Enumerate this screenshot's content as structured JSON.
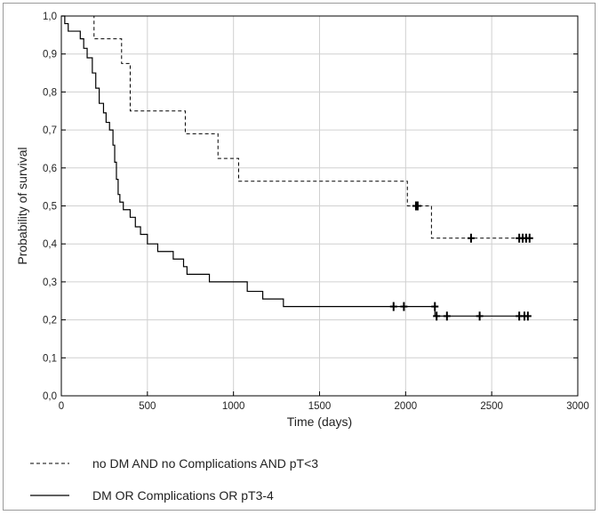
{
  "chart_data": {
    "type": "line",
    "xlabel": "Time (days)",
    "ylabel": "Probability of survival",
    "xlim": [
      0,
      3000
    ],
    "ylim": [
      0,
      1
    ],
    "x_ticks": [
      0,
      500,
      1000,
      1500,
      2000,
      2500,
      3000
    ],
    "x_tick_labels": [
      "0",
      "500",
      "1000",
      "1500",
      "2000",
      "2500",
      "3000"
    ],
    "y_ticks": [
      0,
      0.1,
      0.2,
      0.3,
      0.4,
      0.5,
      0.6,
      0.7,
      0.8,
      0.9,
      1.0
    ],
    "y_tick_labels": [
      "0,0",
      "0,1",
      "0,2",
      "0,3",
      "0,4",
      "0,5",
      "0,6",
      "0,7",
      "0,8",
      "0,9",
      "1,0"
    ],
    "grid": true,
    "legend_position": "bottom",
    "series": [
      {
        "name": "no DM AND  no Complications AND pT<3",
        "style": "dashed",
        "color": "#000000",
        "steps": [
          [
            0,
            1.0
          ],
          [
            190,
            0.94
          ],
          [
            350,
            0.875
          ],
          [
            400,
            0.75
          ],
          [
            720,
            0.69
          ],
          [
            910,
            0.625
          ],
          [
            1030,
            0.565
          ],
          [
            2010,
            0.5
          ],
          [
            2150,
            0.415
          ],
          [
            2720,
            0.415
          ]
        ],
        "censored": [
          [
            2060,
            0.5
          ],
          [
            2070,
            0.5
          ],
          [
            2380,
            0.415
          ],
          [
            2660,
            0.415
          ],
          [
            2680,
            0.415
          ],
          [
            2700,
            0.415
          ],
          [
            2720,
            0.415
          ]
        ]
      },
      {
        "name": "DM OR Complications OR pT3-4",
        "style": "solid",
        "color": "#000000",
        "steps": [
          [
            0,
            1.0
          ],
          [
            20,
            0.98
          ],
          [
            40,
            0.96
          ],
          [
            110,
            0.94
          ],
          [
            130,
            0.915
          ],
          [
            150,
            0.89
          ],
          [
            180,
            0.85
          ],
          [
            200,
            0.81
          ],
          [
            220,
            0.77
          ],
          [
            245,
            0.745
          ],
          [
            260,
            0.72
          ],
          [
            280,
            0.7
          ],
          [
            300,
            0.66
          ],
          [
            310,
            0.615
          ],
          [
            320,
            0.57
          ],
          [
            330,
            0.53
          ],
          [
            340,
            0.51
          ],
          [
            360,
            0.49
          ],
          [
            400,
            0.47
          ],
          [
            430,
            0.445
          ],
          [
            460,
            0.425
          ],
          [
            500,
            0.4
          ],
          [
            560,
            0.38
          ],
          [
            650,
            0.36
          ],
          [
            710,
            0.34
          ],
          [
            730,
            0.32
          ],
          [
            860,
            0.3
          ],
          [
            1080,
            0.275
          ],
          [
            1170,
            0.255
          ],
          [
            1290,
            0.235
          ],
          [
            2170,
            0.21
          ],
          [
            2710,
            0.21
          ]
        ],
        "censored": [
          [
            1930,
            0.235
          ],
          [
            1990,
            0.235
          ],
          [
            2170,
            0.235
          ],
          [
            2180,
            0.21
          ],
          [
            2240,
            0.21
          ],
          [
            2430,
            0.21
          ],
          [
            2660,
            0.21
          ],
          [
            2690,
            0.21
          ],
          [
            2710,
            0.21
          ]
        ]
      }
    ]
  }
}
